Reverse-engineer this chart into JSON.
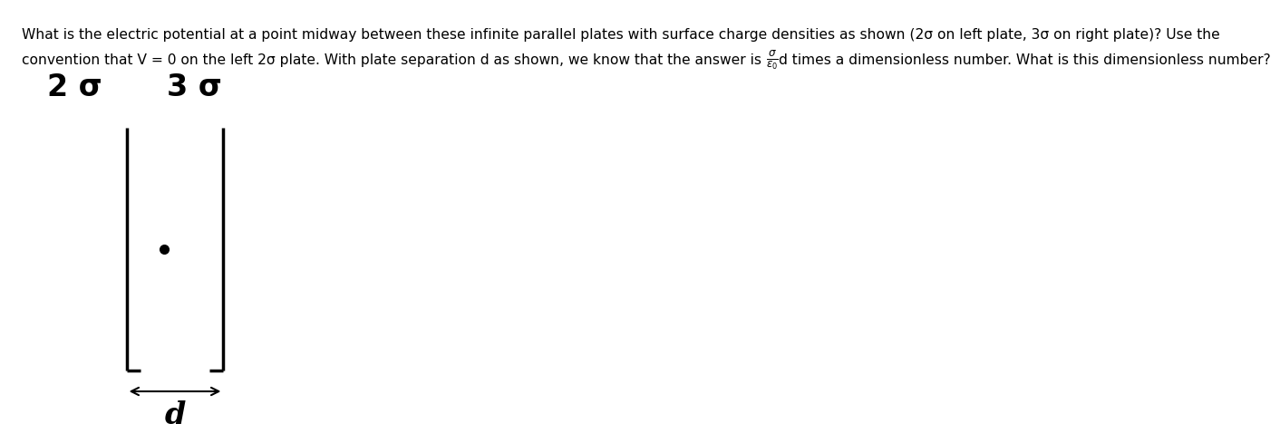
{
  "background_color": "#ffffff",
  "text_line1": "What is the electric potential at a point midway between these infinite parallel plates with surface charge densities as shown (2σ on left plate, 3σ on right plate)? Use the",
  "text_line2_pre": "convention that V = 0 on the left 2σ plate. With plate separation d as shown, we know that the answer is ",
  "text_line2_end": "d times a dimensionless number. What is this dimensionless number?",
  "label_left": "2 σ",
  "label_right": "3 σ",
  "label_d": "d",
  "body_fontsize": 11.2,
  "label_fontsize": 24,
  "plate_linewidth": 2.5,
  "arrow_linewidth": 1.5,
  "foot_linewidth": 2.5,
  "plate_color": "#000000",
  "text_color": "#000000",
  "dot_markersize": 7
}
